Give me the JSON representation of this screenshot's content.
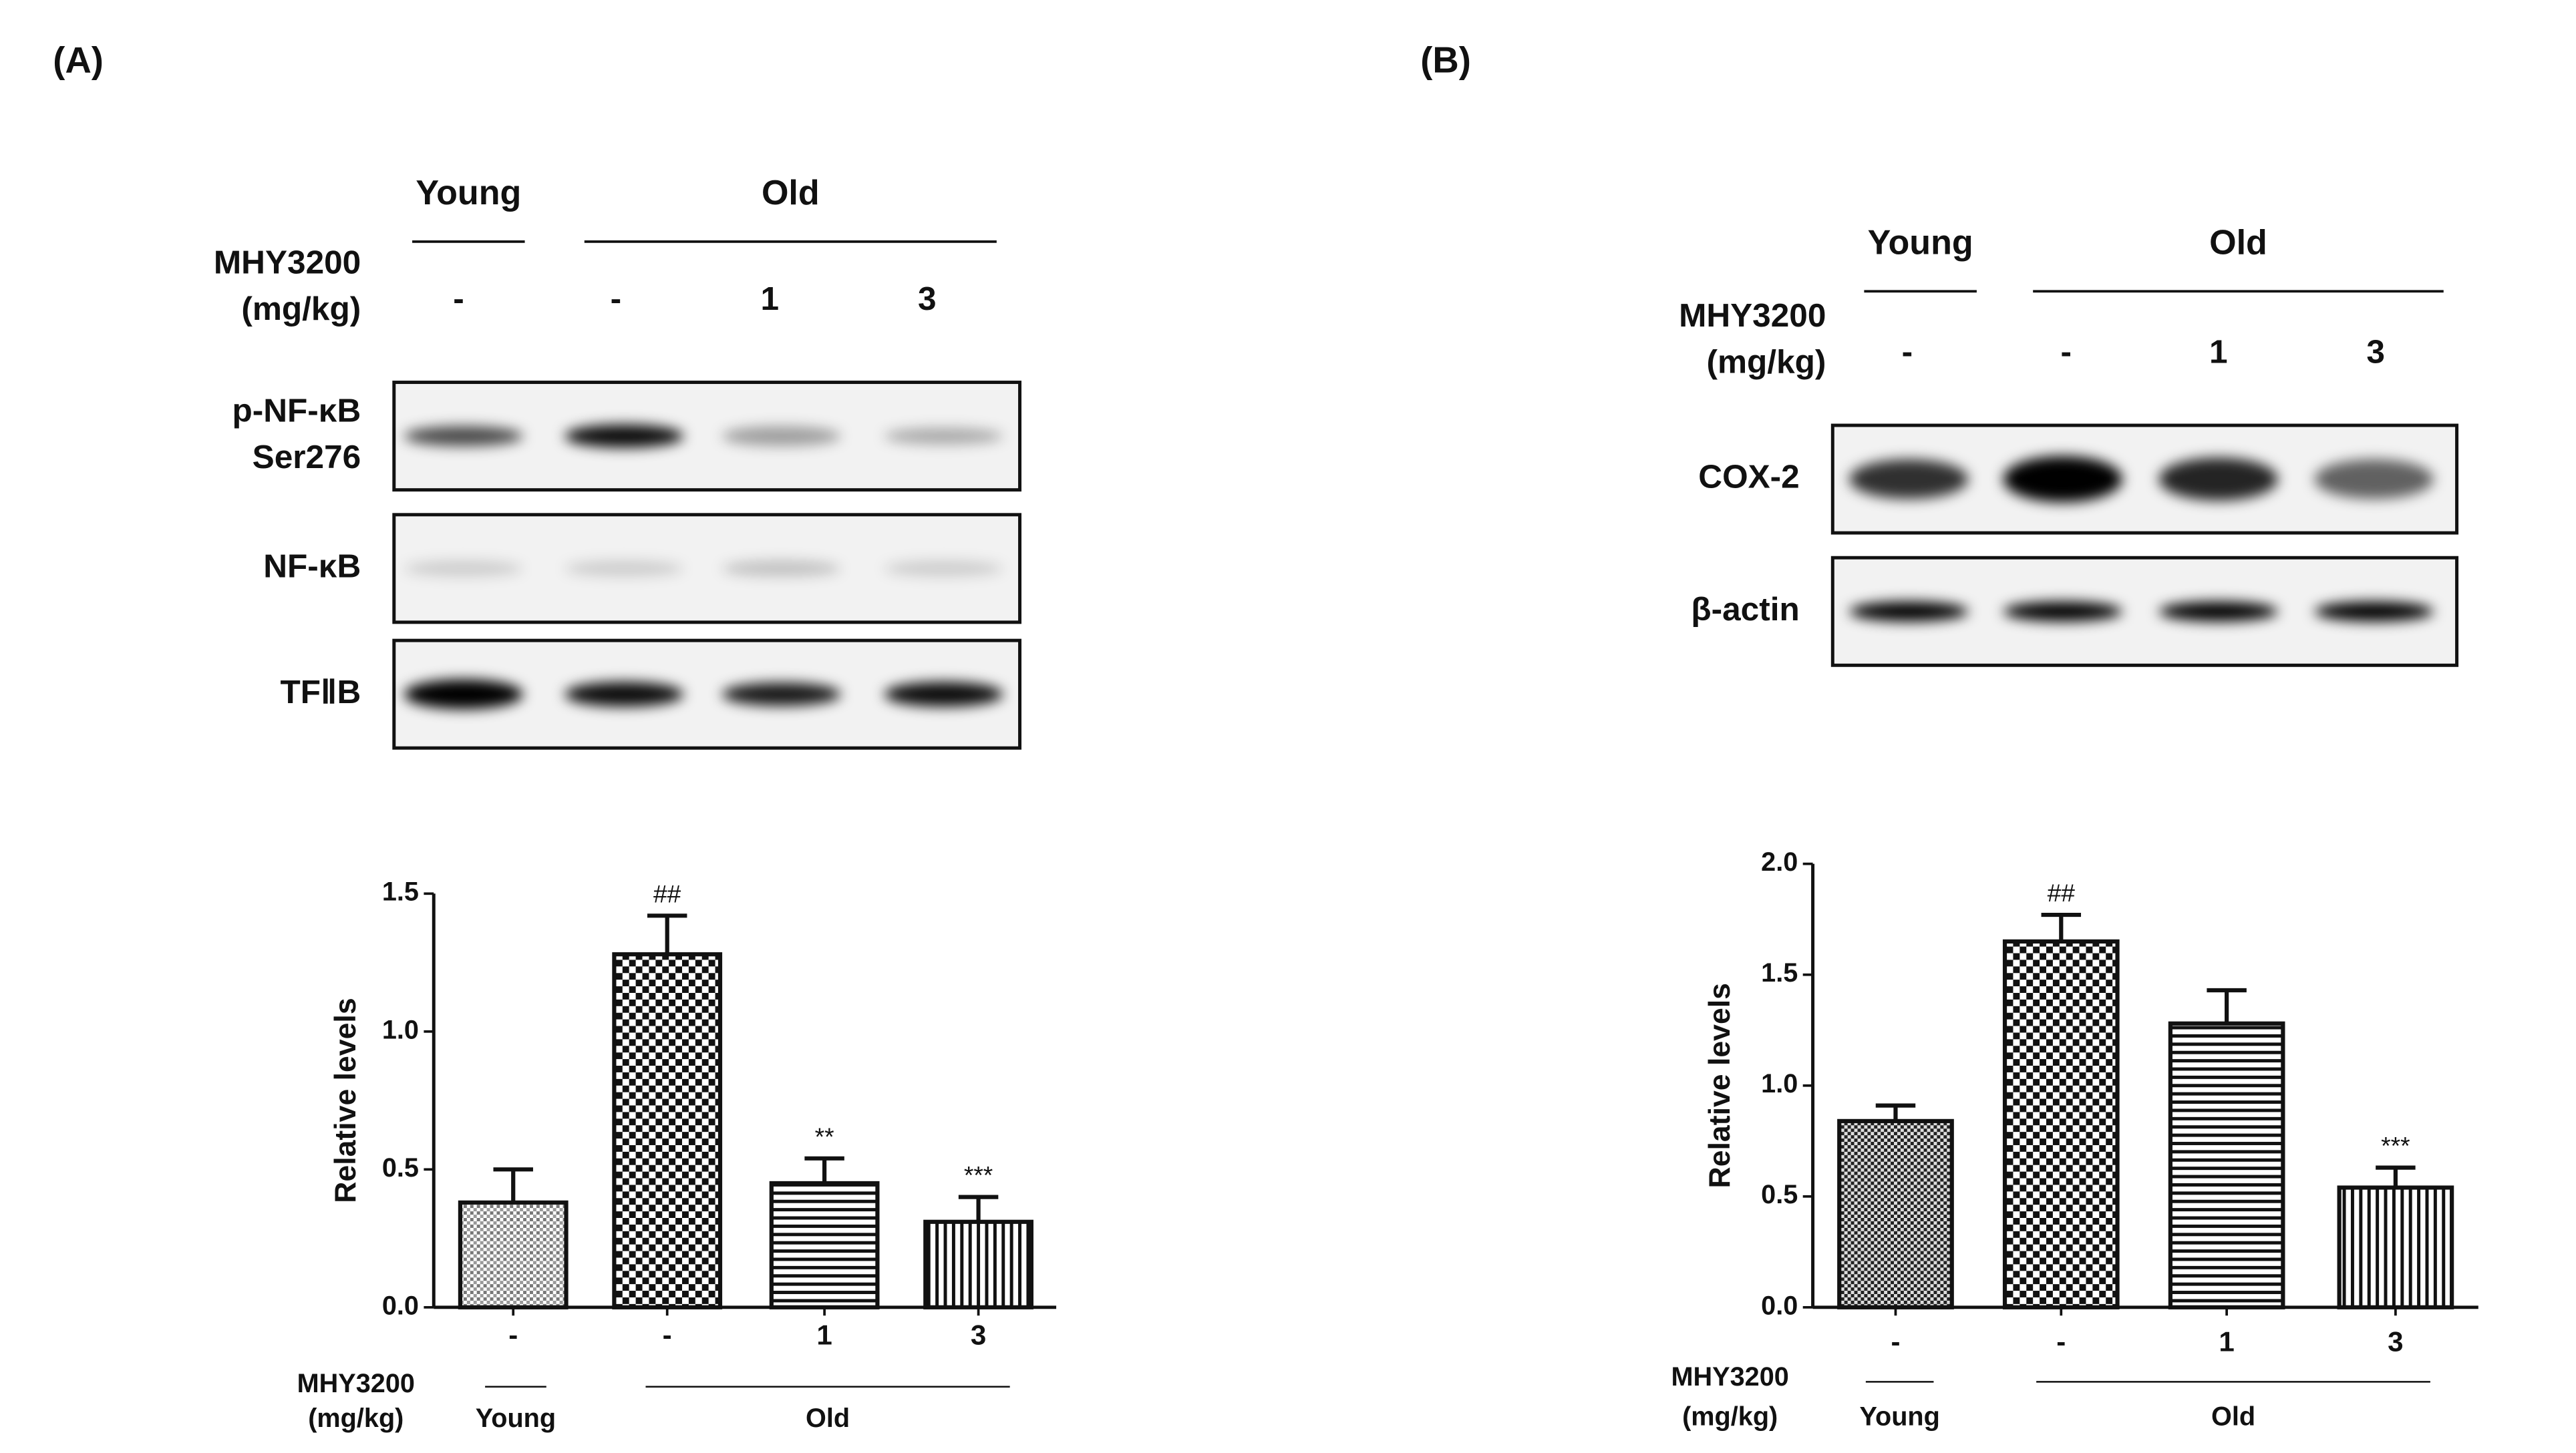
{
  "panels": [
    {
      "label": "(A)",
      "blot": {
        "groups": [
          "Young",
          "Old"
        ],
        "treatment": [
          "MHY3200",
          "(mg/kg)"
        ],
        "doses": [
          "-",
          "-",
          "1",
          "3"
        ],
        "rows": [
          [
            "p-NF-κB",
            "Ser276"
          ],
          [
            "NF-κB"
          ],
          [
            "TFⅡB"
          ]
        ]
      }
    },
    {
      "label": "(B)",
      "blot": {
        "groups": [
          "Young",
          "Old"
        ],
        "treatment": [
          "MHY3200",
          "(mg/kg)"
        ],
        "doses": [
          "-",
          "-",
          "1",
          "3"
        ],
        "rows": [
          [
            "COX-2"
          ],
          [
            "β-actin"
          ]
        ]
      }
    }
  ],
  "chart_data": [
    {
      "type": "bar",
      "ylabel": "Relative levels",
      "categories": [
        "-",
        "-",
        "1",
        "3"
      ],
      "values": [
        0.38,
        1.28,
        0.45,
        0.31
      ],
      "errors": [
        0.12,
        0.14,
        0.09,
        0.09
      ],
      "patterns": [
        "dots",
        "checker",
        "hlines",
        "vlines"
      ],
      "annotations": [
        null,
        "##",
        "**",
        "***"
      ],
      "ylim": [
        0,
        1.5
      ],
      "yticks": [
        {
          "value": 0,
          "label": "0.0"
        },
        {
          "value": 0.5,
          "label": "0.5"
        },
        {
          "value": 1,
          "label": "1.0"
        },
        {
          "value": 1.5,
          "label": "1.5"
        }
      ],
      "x_label": [
        "MHY3200",
        "(mg/kg)"
      ],
      "x_groups": [
        "Young",
        "Old"
      ]
    },
    {
      "type": "bar",
      "ylabel": "Relative levels",
      "categories": [
        "-",
        "-",
        "1",
        "3"
      ],
      "values": [
        0.84,
        1.65,
        1.28,
        0.54
      ],
      "errors": [
        0.07,
        0.12,
        0.15,
        0.09
      ],
      "patterns": [
        "darkchecker",
        "checker",
        "hlines",
        "vlines"
      ],
      "annotations": [
        null,
        "##",
        null,
        "***"
      ],
      "ylim": [
        0,
        2
      ],
      "yticks": [
        {
          "value": 0,
          "label": "0.0"
        },
        {
          "value": 0.5,
          "label": "0.5"
        },
        {
          "value": 1,
          "label": "1.0"
        },
        {
          "value": 1.5,
          "label": "1.5"
        },
        {
          "value": 2,
          "label": "2.0"
        }
      ],
      "x_label": [
        "MHY3200",
        "(mg/kg)"
      ],
      "x_groups": [
        "Young",
        "Old"
      ]
    }
  ]
}
